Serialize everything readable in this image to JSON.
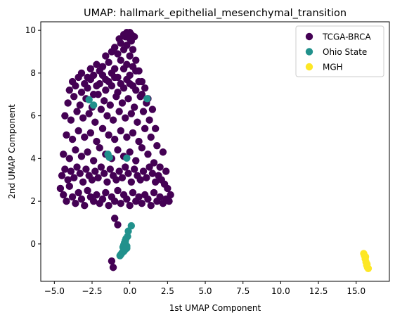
{
  "chart_data": {
    "type": "scatter",
    "title": "UMAP: hallmark_epithelial_mesenchymal_transition",
    "xlabel": "1st UMAP Component",
    "ylabel": "2nd UMAP Component",
    "xlim": [
      -5.9,
      17.2
    ],
    "ylim": [
      -1.75,
      10.4
    ],
    "xticks": [
      -5.0,
      -2.5,
      0.0,
      2.5,
      5.0,
      7.5,
      10.0,
      12.5,
      15.0
    ],
    "xtick_labels": [
      "−5.0",
      "−2.5",
      "0.0",
      "2.5",
      "5.0",
      "7.5",
      "10.0",
      "12.5",
      "15.0"
    ],
    "yticks": [
      0,
      2,
      4,
      6,
      8,
      10
    ],
    "ytick_labels": [
      "0",
      "2",
      "4",
      "6",
      "8",
      "10"
    ],
    "grid": false,
    "legend_position": "top-right",
    "series": [
      {
        "name": "TCGA-BRCA",
        "color": "#440154",
        "x": [
          -4.6,
          -4.4,
          -4.2,
          -4.0,
          -3.8,
          -3.6,
          -3.4,
          -3.2,
          -3.0,
          -2.8,
          -2.6,
          -2.4,
          -2.2,
          -2.0,
          -1.8,
          -1.6,
          -1.4,
          -1.2,
          -1.0,
          -0.8,
          -0.6,
          -0.4,
          -0.2,
          0.0,
          0.2,
          0.4,
          0.6,
          0.8,
          1.0,
          1.2,
          1.4,
          1.6,
          1.8,
          2.0,
          2.2,
          2.4,
          2.6,
          -4.5,
          -4.3,
          -4.1,
          -3.9,
          -3.7,
          -3.5,
          -3.3,
          -3.1,
          -2.9,
          -2.7,
          -2.5,
          -2.3,
          -2.1,
          -1.9,
          -1.7,
          -1.5,
          -1.3,
          -1.1,
          -0.9,
          -0.7,
          -0.5,
          -0.3,
          -0.1,
          0.1,
          0.3,
          0.5,
          0.7,
          0.9,
          1.1,
          1.3,
          1.5,
          1.7,
          1.9,
          2.1,
          2.3,
          2.5,
          2.7,
          -4.4,
          -4.0,
          -3.6,
          -3.2,
          -2.8,
          -2.4,
          -2.0,
          -1.6,
          -1.2,
          -0.8,
          -0.4,
          0.0,
          0.4,
          0.8,
          1.2,
          1.6,
          2.0,
          2.4,
          -4.2,
          -3.8,
          -3.4,
          -3.0,
          -2.6,
          -2.2,
          -1.8,
          -1.4,
          -1.0,
          -0.6,
          -0.2,
          0.2,
          0.6,
          1.0,
          1.4,
          1.8,
          2.2,
          -4.3,
          -3.9,
          -3.5,
          -3.1,
          -2.7,
          -2.3,
          -1.9,
          -1.5,
          -1.1,
          -0.7,
          -0.3,
          0.1,
          0.5,
          0.9,
          1.3,
          1.7,
          -4.1,
          -3.7,
          -3.3,
          -2.9,
          -2.5,
          -2.1,
          -1.7,
          -1.3,
          -0.9,
          -0.5,
          -0.1,
          0.3,
          0.7,
          1.1,
          1.5,
          -4.0,
          -3.6,
          -3.2,
          -2.8,
          -2.4,
          -2.0,
          -1.6,
          -1.2,
          -0.8,
          -0.4,
          0.0,
          0.4,
          0.8,
          1.2,
          -3.8,
          -3.4,
          -3.0,
          -2.6,
          -2.2,
          -1.8,
          -1.4,
          -1.0,
          -0.6,
          -0.2,
          0.2,
          0.6,
          1.0,
          -3.2,
          -2.8,
          -2.4,
          -2.0,
          -1.6,
          -1.2,
          -0.8,
          -0.4,
          0.0,
          0.4,
          0.8,
          -2.6,
          -2.2,
          -1.8,
          -1.4,
          -1.0,
          -0.6,
          -0.2,
          0.2,
          0.6,
          -1.6,
          -1.2,
          -0.8,
          -0.4,
          0.0,
          0.4,
          -1.0,
          -0.6,
          -0.2,
          0.2,
          -0.7,
          -0.3,
          0.1,
          -0.4,
          0.0,
          0.3,
          -0.2,
          0.1,
          0.0,
          -1.0,
          -0.8,
          -1.2,
          -1.1
        ],
        "y": [
          2.6,
          2.3,
          2.0,
          2.7,
          2.2,
          1.9,
          2.4,
          2.1,
          1.8,
          2.5,
          2.2,
          2.0,
          2.3,
          1.9,
          2.1,
          2.4,
          1.8,
          2.2,
          2.0,
          2.5,
          1.9,
          2.3,
          2.1,
          1.8,
          2.4,
          2.0,
          2.2,
          1.9,
          2.3,
          2.1,
          1.8,
          2.4,
          2.0,
          2.2,
          1.9,
          2.1,
          2.0,
          3.2,
          3.5,
          3.0,
          3.4,
          3.1,
          3.6,
          3.3,
          2.9,
          3.5,
          3.2,
          3.0,
          3.4,
          3.1,
          3.6,
          3.3,
          2.9,
          3.5,
          3.2,
          3.0,
          3.4,
          3.1,
          3.6,
          3.3,
          2.9,
          3.5,
          3.2,
          3.0,
          3.4,
          3.1,
          3.6,
          3.3,
          2.9,
          3.2,
          3.0,
          2.8,
          2.6,
          2.3,
          4.2,
          4.0,
          4.4,
          4.1,
          4.3,
          3.9,
          4.5,
          4.2,
          4.0,
          4.4,
          4.1,
          4.3,
          3.9,
          4.5,
          4.2,
          3.8,
          3.6,
          3.4,
          5.1,
          4.9,
          5.3,
          5.0,
          5.2,
          4.8,
          5.4,
          5.1,
          4.9,
          5.3,
          5.0,
          5.2,
          4.8,
          5.4,
          5.0,
          4.6,
          4.3,
          6.0,
          5.8,
          6.2,
          5.9,
          6.1,
          5.7,
          6.3,
          6.0,
          5.8,
          6.2,
          5.9,
          6.1,
          5.7,
          6.2,
          5.8,
          5.4,
          6.6,
          6.9,
          6.5,
          6.8,
          6.4,
          7.0,
          6.7,
          6.5,
          6.9,
          6.6,
          6.8,
          6.4,
          6.9,
          6.6,
          6.3,
          7.2,
          7.4,
          7.1,
          7.3,
          7.0,
          7.5,
          7.2,
          7.4,
          7.1,
          7.3,
          7.5,
          7.2,
          7.0,
          6.8,
          7.6,
          7.8,
          7.5,
          7.7,
          7.4,
          7.9,
          7.6,
          7.8,
          7.5,
          7.7,
          7.4,
          7.6,
          7.3,
          8.0,
          7.8,
          7.9,
          8.1,
          7.7,
          8.0,
          7.8,
          8.2,
          7.9,
          8.1,
          7.6,
          8.2,
          8.4,
          8.3,
          8.5,
          8.2,
          8.6,
          8.4,
          8.3,
          8.1,
          8.8,
          9.0,
          8.9,
          9.1,
          8.8,
          8.6,
          9.2,
          9.4,
          9.3,
          9.1,
          9.6,
          9.7,
          9.5,
          9.8,
          9.9,
          9.7,
          9.9,
          9.8,
          9.6,
          1.2,
          0.9,
          -0.8,
          -1.1
        ]
      },
      {
        "name": "Ohio State",
        "color": "#21918c",
        "x": [
          -2.7,
          -2.4,
          1.15,
          -1.45,
          -1.35,
          -0.2,
          0.1,
          -0.1,
          -0.15,
          -0.25,
          -0.3,
          -0.35,
          -0.4,
          -0.45,
          -0.3,
          -0.35,
          -0.2,
          -0.4,
          -0.5,
          -0.55,
          -0.6,
          -0.65,
          -0.3,
          -0.2
        ],
        "y": [
          6.75,
          6.5,
          6.8,
          4.2,
          4.05,
          4.02,
          0.85,
          0.6,
          0.35,
          0.25,
          0.15,
          0.05,
          -0.05,
          -0.15,
          -0.25,
          -0.3,
          -0.2,
          -0.35,
          -0.4,
          -0.45,
          -0.5,
          -0.55,
          0.1,
          -0.1
        ]
      },
      {
        "name": "MGH",
        "color": "#fde725",
        "x": [
          15.5,
          15.55,
          15.6,
          15.65,
          15.7,
          15.75,
          15.8,
          15.72,
          15.62
        ],
        "y": [
          -0.45,
          -0.55,
          -0.7,
          -0.85,
          -1.0,
          -1.1,
          -1.15,
          -0.95,
          -0.6
        ]
      }
    ]
  }
}
